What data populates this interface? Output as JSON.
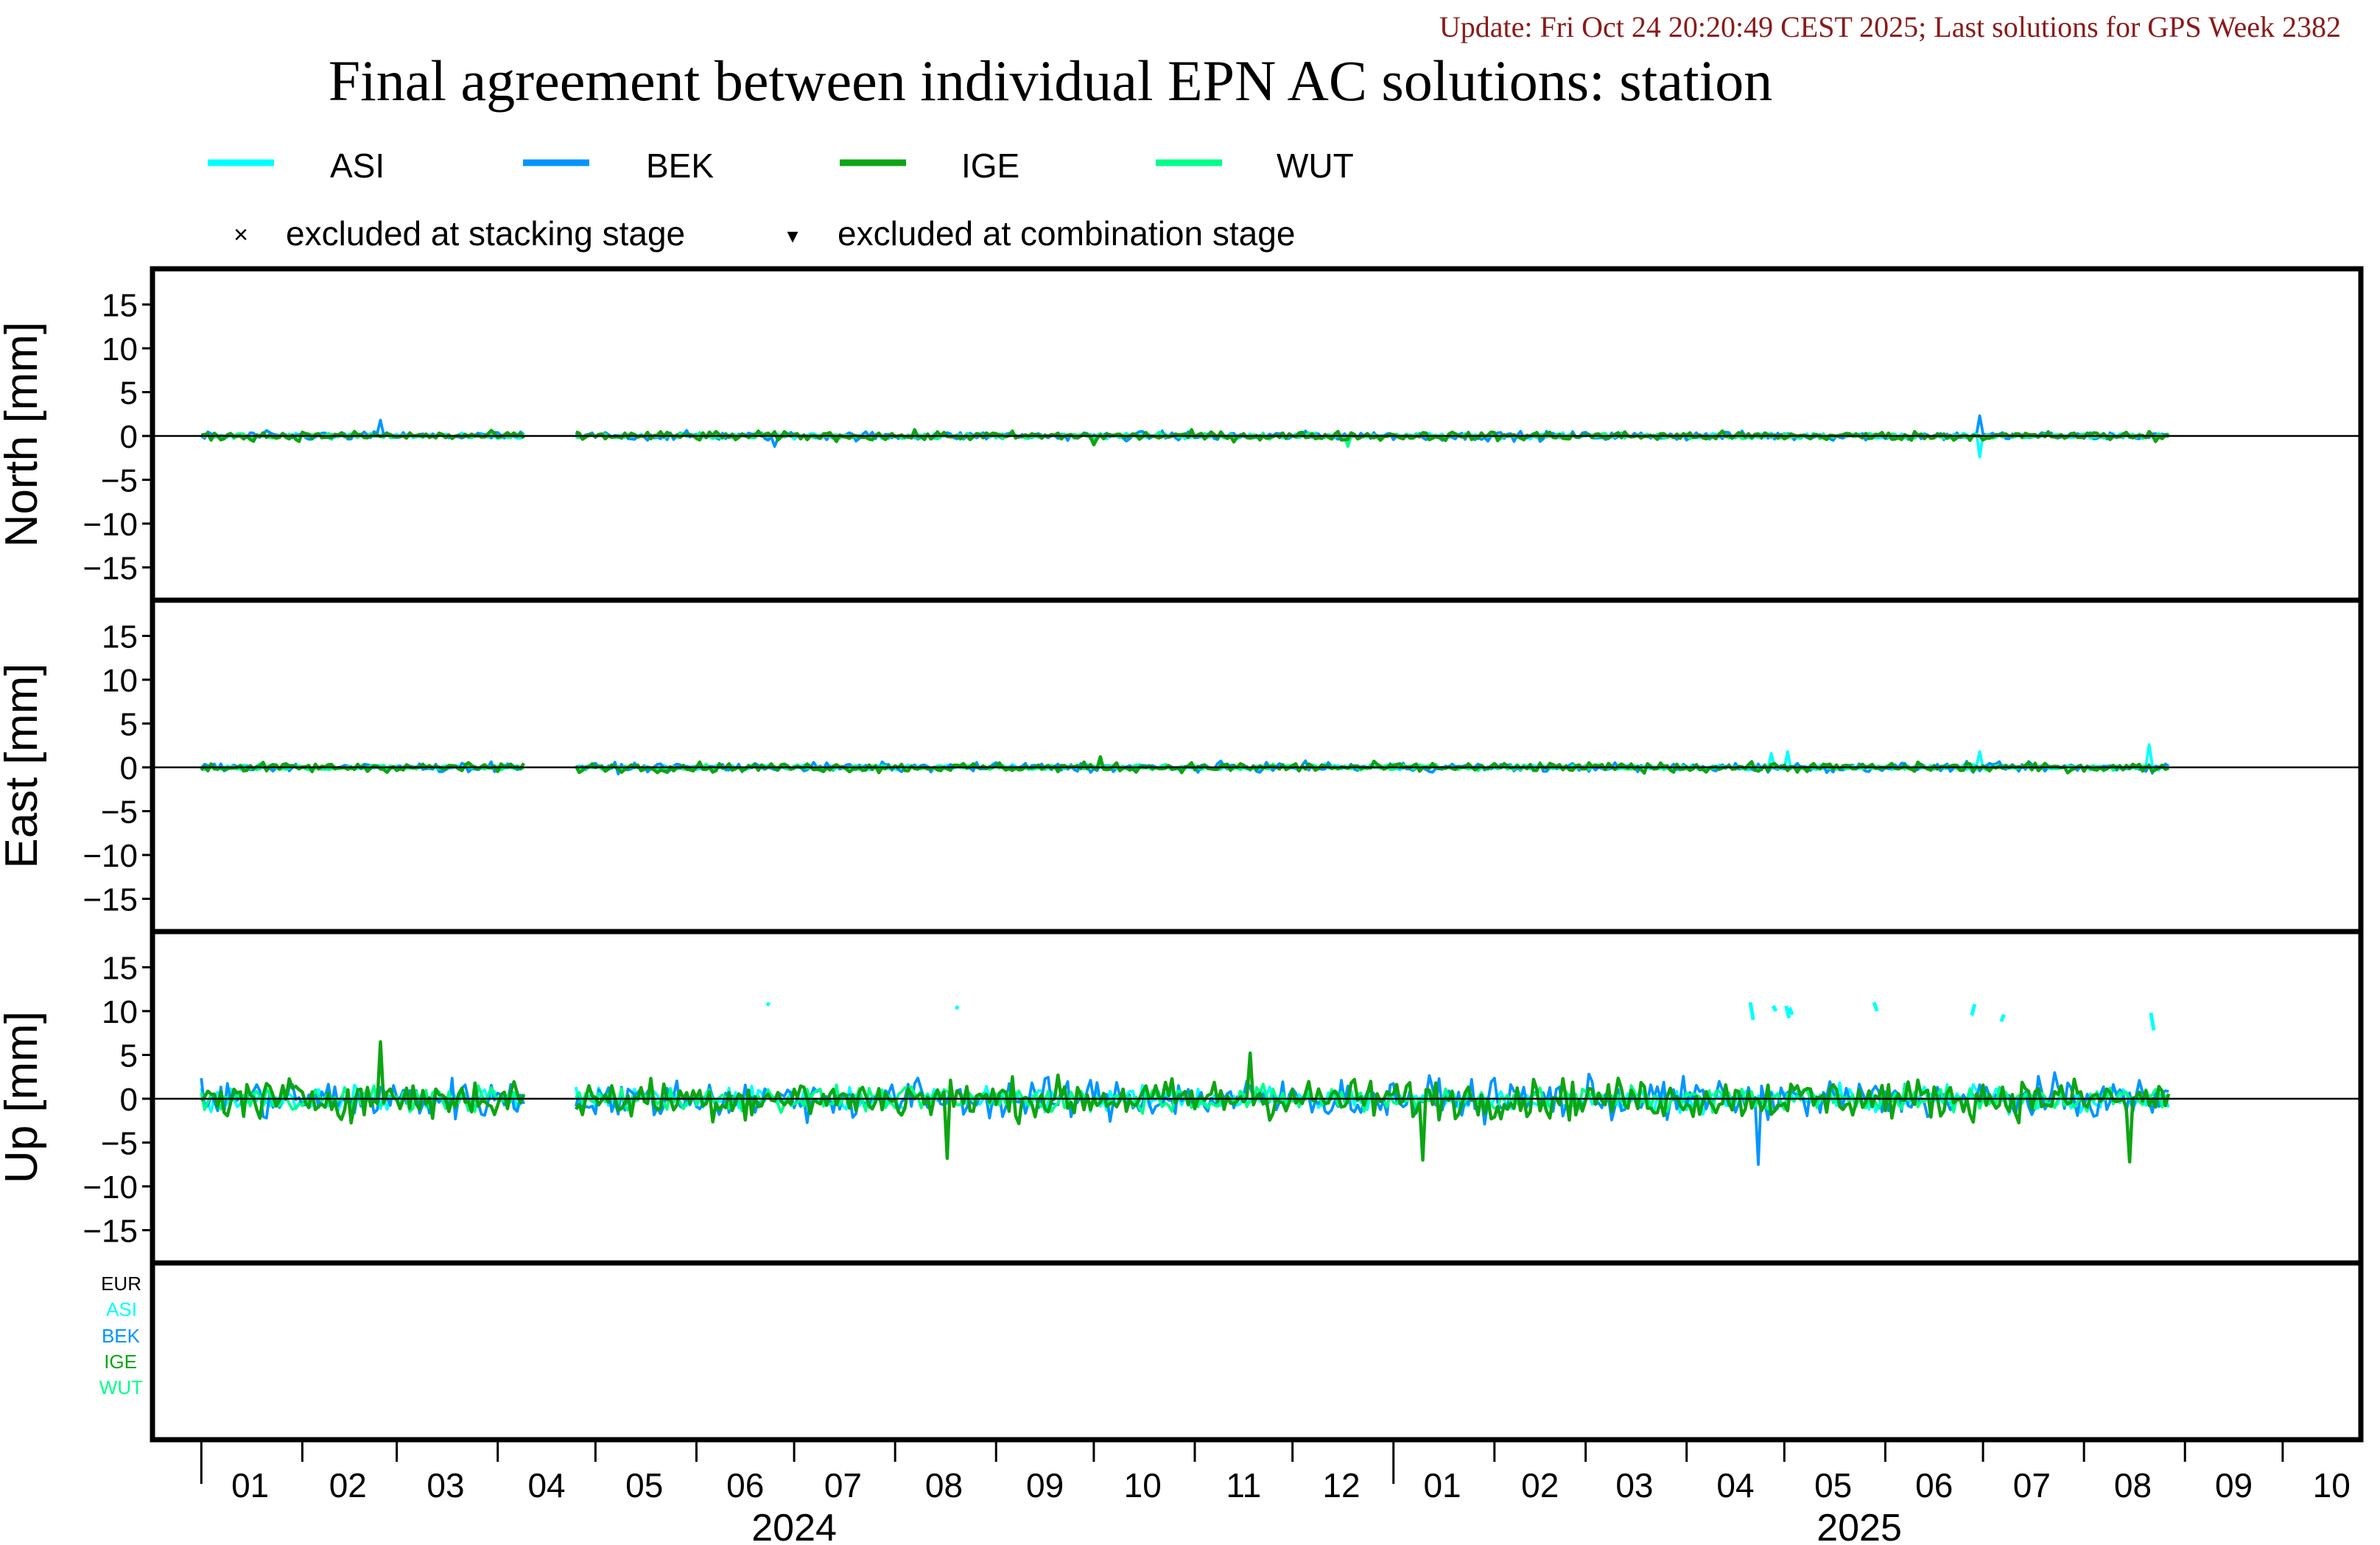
{
  "header": {
    "update_text": "Update: Fri Oct 24 20:20:49 CEST 2025; Last solutions for GPS Week 2382",
    "title": "Final agreement between individual EPN AC solutions: station"
  },
  "legend": {
    "series": [
      {
        "name": "ASI",
        "color": "#00ffff"
      },
      {
        "name": "BEK",
        "color": "#0095ff"
      },
      {
        "name": "IGE",
        "color": "#0da513"
      },
      {
        "name": "WUT",
        "color": "#00ff88"
      }
    ],
    "marker_stacking_symbol": "×",
    "marker_stacking_label": "excluded at stacking stage",
    "marker_combination_symbol": "▾",
    "marker_combination_label": "excluded at combination stage"
  },
  "colors": {
    "update_text": "#8b1a1a",
    "axis": "#000000",
    "EUR": "#000000"
  },
  "chart_data": [
    {
      "type": "line",
      "panel": "north",
      "ylabel": "North [mm]",
      "ylim": [
        -19,
        19
      ],
      "yticks": [
        -15,
        -10,
        -5,
        0,
        5,
        10,
        15
      ],
      "x_range": [
        "2023-12-17",
        "2025-10-25"
      ],
      "amplitude_mm": 0.5,
      "series": [
        "ASI",
        "BEK",
        "IGE",
        "WUT"
      ],
      "spikes": [
        {
          "date": "2024-02-25",
          "series": "BEK",
          "value": 1.8
        },
        {
          "date": "2024-06-25",
          "series": "BEK",
          "value": -1.2
        },
        {
          "date": "2024-10-01",
          "series": "IGE",
          "value": -1.0
        },
        {
          "date": "2024-12-18",
          "series": "WUT",
          "value": -1.2
        },
        {
          "date": "2025-06-30",
          "series": "BEK",
          "value": 2.3
        },
        {
          "date": "2025-06-30",
          "series": "ASI",
          "value": -2.4
        }
      ]
    },
    {
      "type": "line",
      "panel": "east",
      "ylabel": "East [mm]",
      "ylim": [
        -19,
        19
      ],
      "yticks": [
        -15,
        -10,
        -5,
        0,
        5,
        10,
        15
      ],
      "x_range": [
        "2023-12-17",
        "2025-10-25"
      ],
      "amplitude_mm": 0.5,
      "series": [
        "ASI",
        "BEK",
        "IGE",
        "WUT"
      ],
      "spikes": [
        {
          "date": "2024-10-03",
          "series": "IGE",
          "value": 1.2
        },
        {
          "date": "2025-04-27",
          "series": "ASI",
          "value": 1.6
        },
        {
          "date": "2025-05-02",
          "series": "ASI",
          "value": 1.8
        },
        {
          "date": "2025-06-30",
          "series": "ASI",
          "value": 1.8
        },
        {
          "date": "2025-08-21",
          "series": "ASI",
          "value": 2.6
        }
      ]
    },
    {
      "type": "line",
      "panel": "up",
      "ylabel": "Up [mm]",
      "ylim": [
        -19,
        19
      ],
      "yticks": [
        -15,
        -10,
        -5,
        0,
        5,
        10,
        15
      ],
      "x_range": [
        "2023-12-17",
        "2025-10-25"
      ],
      "amplitude_mm": 2.2,
      "series": [
        "ASI",
        "BEK",
        "IGE",
        "WUT"
      ],
      "spikes": [
        {
          "date": "2024-02-25",
          "series": "IGE",
          "value": 6.5
        },
        {
          "date": "2024-08-17",
          "series": "IGE",
          "value": -6.8
        },
        {
          "date": "2024-11-18",
          "series": "IGE",
          "value": 5.2
        },
        {
          "date": "2025-01-10",
          "series": "IGE",
          "value": -7.0
        },
        {
          "date": "2025-04-23",
          "series": "BEK",
          "value": -7.5
        },
        {
          "date": "2025-08-15",
          "series": "IGE",
          "value": -7.2
        }
      ],
      "asi_outliers": [
        {
          "date": "2024-06-23",
          "y1": 10.9,
          "y2": 10.7
        },
        {
          "date": "2024-08-20",
          "y1": 10.5,
          "y2": 10.3
        },
        {
          "date": "2025-04-21",
          "y1": 11.0,
          "y2": 9.0
        },
        {
          "date": "2025-04-28",
          "y1": 10.6,
          "y2": 10.0
        },
        {
          "date": "2025-05-02",
          "y1": 10.6,
          "y2": 9.2
        },
        {
          "date": "2025-05-03",
          "y1": 10.4,
          "y2": 9.6
        },
        {
          "date": "2025-05-29",
          "y1": 11.0,
          "y2": 10.0
        },
        {
          "date": "2025-06-28",
          "y1": 9.5,
          "y2": 10.8
        },
        {
          "date": "2025-07-07",
          "y1": 8.8,
          "y2": 9.6
        },
        {
          "date": "2025-08-22",
          "y1": 9.8,
          "y2": 7.8
        }
      ]
    }
  ],
  "gaps": [
    {
      "start": "2024-04-10",
      "end": "2024-04-24"
    }
  ],
  "data_span": {
    "start": "2024-01-01",
    "end": "2025-08-27"
  },
  "bottom_panel": {
    "labels": [
      {
        "text": "EUR",
        "color": "#000000"
      },
      {
        "text": "ASI",
        "color": "#00ffff"
      },
      {
        "text": "BEK",
        "color": "#0095ff"
      },
      {
        "text": "IGE",
        "color": "#0da513"
      },
      {
        "text": "WUT",
        "color": "#00ff88"
      }
    ]
  },
  "x_axis": {
    "month_labels": [
      "01",
      "02",
      "03",
      "04",
      "05",
      "06",
      "07",
      "08",
      "09",
      "10",
      "11",
      "12",
      "01",
      "02",
      "03",
      "04",
      "05",
      "06",
      "07",
      "08",
      "09",
      "10"
    ],
    "month_centers": [
      "2024-01-16",
      "2024-02-15",
      "2024-03-16",
      "2024-04-16",
      "2024-05-16",
      "2024-06-16",
      "2024-07-16",
      "2024-08-16",
      "2024-09-16",
      "2024-10-16",
      "2024-11-16",
      "2024-12-16",
      "2025-01-16",
      "2025-02-15",
      "2025-03-16",
      "2025-04-16",
      "2025-05-16",
      "2025-06-16",
      "2025-07-16",
      "2025-08-16",
      "2025-09-16",
      "2025-10-16"
    ],
    "month_boundaries": [
      "2024-02-01",
      "2024-03-01",
      "2024-04-01",
      "2024-05-01",
      "2024-06-01",
      "2024-07-01",
      "2024-08-01",
      "2024-09-01",
      "2024-10-01",
      "2024-11-01",
      "2024-12-01",
      "2025-02-01",
      "2025-03-01",
      "2025-04-01",
      "2025-05-01",
      "2025-06-01",
      "2025-07-01",
      "2025-08-01",
      "2025-09-01",
      "2025-10-01"
    ],
    "year_boundaries": [
      "2024-01-01",
      "2025-01-01"
    ],
    "year_labels": [
      {
        "text": "2024",
        "center": "2024-07-01"
      },
      {
        "text": "2025",
        "center": "2025-05-24"
      }
    ]
  }
}
